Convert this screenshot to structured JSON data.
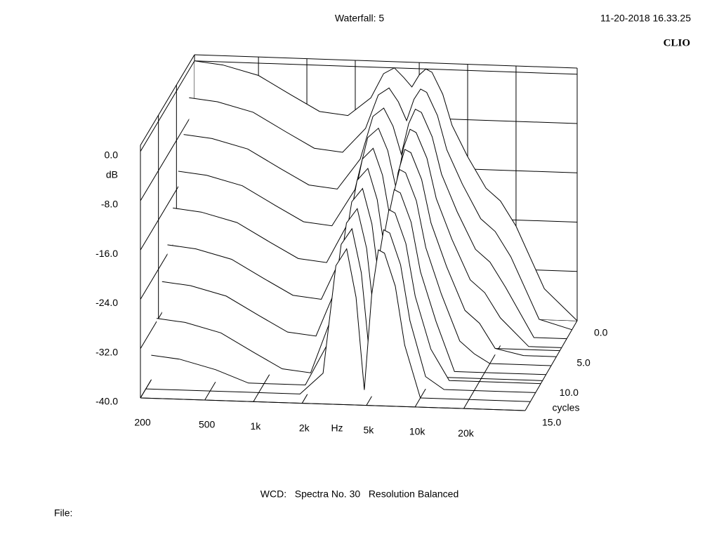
{
  "chart_data": {
    "type": "waterfall",
    "title": "Waterfall: 5",
    "timestamp": "11-20-2018 16.33.25",
    "brand": "CLIO",
    "ylabel": "dB",
    "xlabel": "Hz",
    "zlabel": "cycles",
    "footer": "WCD:   Spectra No. 30   Resolution Balanced",
    "file_label": "File:",
    "log_x": true,
    "grid": true,
    "color": "#000000",
    "xlim": [
      200,
      48000
    ],
    "xticks": [
      200,
      500,
      {
        "value": 1000,
        "label": "1k"
      },
      {
        "value": 2000,
        "label": "2k"
      },
      {
        "value": 5000,
        "label": "5k"
      },
      {
        "value": 10000,
        "label": "10k"
      },
      {
        "value": 20000,
        "label": "20k"
      }
    ],
    "ylim": [
      -40,
      1
    ],
    "yticks": [
      {
        "value": 0,
        "label": "0.0"
      },
      {
        "value": -8,
        "label": "-8.0"
      },
      {
        "value": -16,
        "label": "-16.0"
      },
      {
        "value": -24,
        "label": "-24.0"
      },
      {
        "value": -32,
        "label": "-32.0"
      },
      {
        "value": -40,
        "label": "-40.0"
      }
    ],
    "zlim": [
      0,
      15
    ],
    "zticks": [
      {
        "value": 0,
        "label": "0.0"
      },
      {
        "value": 5,
        "label": "5.0"
      },
      {
        "value": 10,
        "label": "10.0"
      },
      {
        "value": 15,
        "label": "15.0"
      }
    ],
    "x": [
      200,
      300,
      500,
      800,
      1200,
      1800,
      2500,
      3000,
      3500,
      4000,
      4500,
      5000,
      5500,
      6000,
      7000,
      8000,
      10000,
      13000,
      16000,
      20000,
      30000,
      48000
    ],
    "z": [
      0,
      1.5,
      3,
      4.5,
      6,
      7.5,
      9,
      10.5,
      12,
      13.5
    ],
    "series": [
      {
        "values": [
          0,
          -0.5,
          -2,
          -5,
          -7.5,
          -8,
          -5,
          -1,
          0,
          -1.5,
          -3,
          -1,
          0,
          -0.5,
          -4,
          -9,
          -14,
          -19,
          -21,
          -25,
          -35,
          -40
        ]
      },
      {
        "values": [
          -4.5,
          -5,
          -6.5,
          -9.5,
          -12,
          -12.5,
          -8.5,
          -3,
          -1.8,
          -4,
          -7,
          -3.5,
          -1.8,
          -2.3,
          -6,
          -11.5,
          -17,
          -22.5,
          -24.5,
          -28.5,
          -38.5,
          -40
        ]
      },
      {
        "values": [
          -9,
          -9.5,
          -11,
          -14,
          -16.5,
          -17,
          -12,
          -5,
          -3.6,
          -6.5,
          -11,
          -6,
          -3.6,
          -4.1,
          -8,
          -14,
          -20,
          -26,
          -28,
          -32,
          -40,
          -40
        ]
      },
      {
        "values": [
          -13.5,
          -14,
          -15.5,
          -18.5,
          -21,
          -21.5,
          -15.5,
          -7,
          -5.4,
          -9,
          -15,
          -8.5,
          -5.4,
          -5.9,
          -10,
          -16.5,
          -23,
          -29.5,
          -31.5,
          -35.5,
          -40,
          -40
        ]
      },
      {
        "values": [
          -18,
          -18.5,
          -20,
          -23,
          -25.5,
          -26,
          -19,
          -9,
          -7.2,
          -11.5,
          -19,
          -11,
          -7.2,
          -7.7,
          -12,
          -19,
          -26,
          -33,
          -35,
          -39,
          -40,
          -40
        ]
      },
      {
        "values": [
          -22.5,
          -23,
          -24.5,
          -27.5,
          -30,
          -30.5,
          -22.5,
          -11,
          -9,
          -14,
          -23,
          -13.5,
          -9,
          -9.5,
          -14,
          -21.5,
          -29,
          -36.5,
          -38.5,
          -40,
          -40,
          -40
        ]
      },
      {
        "values": [
          -27,
          -27.5,
          -29,
          -32,
          -34.5,
          -35,
          -26,
          -13,
          -10.8,
          -16.5,
          -27,
          -16,
          -10.8,
          -11.3,
          -16,
          -24,
          -32,
          -40,
          -40,
          -40,
          -40,
          -40
        ]
      },
      {
        "values": [
          -31.5,
          -32,
          -33.5,
          -36.5,
          -39,
          -39.5,
          -29.5,
          -15,
          -12.6,
          -19,
          -31,
          -18.5,
          -12.6,
          -13.1,
          -18,
          -26.5,
          -35,
          -40,
          -40,
          -40,
          -40,
          -40
        ]
      },
      {
        "values": [
          -36,
          -36.5,
          -38,
          -40,
          -40,
          -40,
          -33,
          -17,
          -14.4,
          -21.5,
          -35,
          -21,
          -14.4,
          -14.9,
          -20,
          -29,
          -38,
          -40,
          -40,
          -40,
          -40,
          -40
        ]
      },
      {
        "values": [
          -40,
          -40,
          -40,
          -40,
          -40,
          -40,
          -36.5,
          -19,
          -16.2,
          -24,
          -39,
          -23.5,
          -16.2,
          -16.7,
          -22,
          -31.5,
          -40,
          -40,
          -40,
          -40,
          -40,
          -40
        ]
      }
    ]
  }
}
